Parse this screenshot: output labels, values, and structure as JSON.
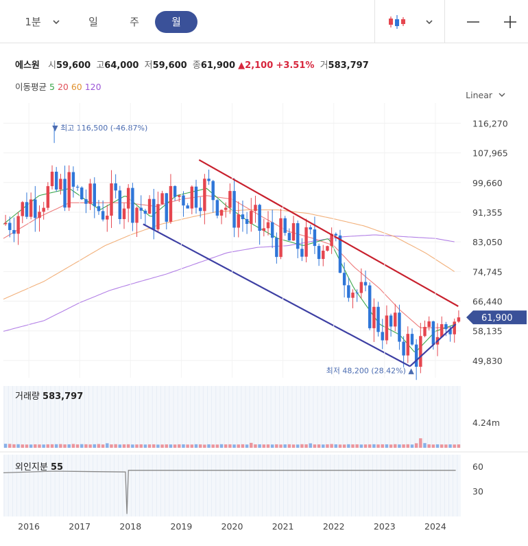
{
  "toolbar": {
    "interval_minute": "1분",
    "interval_day": "일",
    "interval_week": "주",
    "interval_month": "월",
    "active": "월"
  },
  "stock": {
    "name": "에스원",
    "open_label": "시",
    "open": "59,600",
    "high_label": "고",
    "high": "64,000",
    "low_label": "저",
    "low": "59,600",
    "close_label": "종",
    "close": "61,900",
    "change_arrow": "▲",
    "change": "2,100",
    "change_pct": "+3.51%",
    "volume_label": "거",
    "volume": "583,797"
  },
  "ma": {
    "label": "이동평균",
    "p5": "5",
    "p20": "20",
    "p60": "60",
    "p120": "120"
  },
  "scale_mode": "Linear",
  "colors": {
    "up": "#e5464f",
    "down": "#2f76d8",
    "ma5": "#3aa64a",
    "ma20": "#ee7c7c",
    "ma60": "#f2b07a",
    "ma120": "#b27fe6",
    "channel_top": "#c8202d",
    "channel_bottom": "#3d3fa3",
    "accent": "#3a5199"
  },
  "chart_data": {
    "type": "candlestick",
    "timeframe": "monthly",
    "ylim": [
      45000,
      120000
    ],
    "y_ticks": [
      "116,270",
      "107,965",
      "99,660",
      "91,355",
      "83,050",
      "74,745",
      "66,440",
      "58,135",
      "49,830"
    ],
    "y_tick_values": [
      116270,
      107965,
      99660,
      91355,
      83050,
      74745,
      66440,
      58135,
      49830
    ],
    "x_ticks": [
      "2016",
      "2017",
      "2018",
      "2019",
      "2020",
      "2021",
      "2022",
      "2023",
      "2024"
    ],
    "start_year": 2015.5,
    "months": 108,
    "last_price": "61,900",
    "last_price_value": 61900,
    "max_marker": {
      "text": "▼ 최고 116,500 (-46.87%)",
      "value": 116500,
      "year": 2016.5
    },
    "min_marker": {
      "text": "최저 48,200 (28.42%) ▲",
      "value": 48200,
      "year": 2023.5
    },
    "trend_lines": [
      {
        "name": "upper-channel",
        "from": [
          2019.35,
          106000
        ],
        "to": [
          2024.45,
          65000
        ]
      },
      {
        "name": "lower-channel",
        "from": [
          2018.25,
          88000
        ],
        "to": [
          2023.5,
          48200
        ]
      },
      {
        "name": "support-line",
        "from": [
          2023.5,
          48200
        ],
        "to": [
          2024.4,
          60000
        ]
      }
    ],
    "ma_anchors": {
      "ma5": [
        [
          2015.5,
          88000
        ],
        [
          2016.2,
          96000
        ],
        [
          2016.8,
          98000
        ],
        [
          2017.4,
          92000
        ],
        [
          2017.9,
          96000
        ],
        [
          2018.4,
          90000
        ],
        [
          2018.9,
          96000
        ],
        [
          2019.5,
          98000
        ],
        [
          2019.9,
          93000
        ],
        [
          2020.4,
          88000
        ],
        [
          2020.9,
          84000
        ],
        [
          2021.4,
          82000
        ],
        [
          2021.9,
          84000
        ],
        [
          2022.4,
          70000
        ],
        [
          2022.9,
          60000
        ],
        [
          2023.3,
          57000
        ],
        [
          2023.6,
          52000
        ],
        [
          2024.0,
          58000
        ],
        [
          2024.4,
          60000
        ]
      ],
      "ma20": [
        [
          2015.5,
          84000
        ],
        [
          2016.2,
          90000
        ],
        [
          2016.8,
          94000
        ],
        [
          2017.4,
          94000
        ],
        [
          2017.9,
          94000
        ],
        [
          2018.5,
          93000
        ],
        [
          2019.0,
          95000
        ],
        [
          2019.5,
          96000
        ],
        [
          2020.0,
          95000
        ],
        [
          2020.6,
          90000
        ],
        [
          2021.1,
          86000
        ],
        [
          2021.6,
          84000
        ],
        [
          2022.0,
          82000
        ],
        [
          2022.4,
          76000
        ],
        [
          2022.9,
          70000
        ],
        [
          2023.3,
          64000
        ],
        [
          2023.7,
          59000
        ],
        [
          2024.4,
          59000
        ]
      ],
      "ma60": [
        [
          2015.5,
          67000
        ],
        [
          2016.3,
          72000
        ],
        [
          2016.9,
          77000
        ],
        [
          2017.5,
          82000
        ],
        [
          2018.0,
          85000
        ],
        [
          2018.6,
          88000
        ],
        [
          2019.2,
          90000
        ],
        [
          2019.7,
          91500
        ],
        [
          2020.3,
          92000
        ],
        [
          2020.9,
          92000
        ],
        [
          2021.5,
          91000
        ],
        [
          2022.0,
          89500
        ],
        [
          2022.6,
          87500
        ],
        [
          2023.2,
          84500
        ],
        [
          2023.8,
          80000
        ],
        [
          2024.4,
          74500
        ]
      ],
      "ma120": [
        [
          2015.5,
          58000
        ],
        [
          2016.3,
          61000
        ],
        [
          2017.0,
          66000
        ],
        [
          2017.6,
          69500
        ],
        [
          2018.2,
          72000
        ],
        [
          2018.7,
          74000
        ],
        [
          2019.3,
          77000
        ],
        [
          2019.9,
          80000
        ],
        [
          2020.5,
          81500
        ],
        [
          2021.1,
          82000
        ],
        [
          2021.7,
          83500
        ],
        [
          2022.2,
          84500
        ],
        [
          2022.8,
          85000
        ],
        [
          2023.4,
          84500
        ],
        [
          2024.0,
          84000
        ],
        [
          2024.4,
          83000
        ]
      ]
    },
    "volume_label": "거래량",
    "volume_value": "583,797",
    "volume_tick": "4.24m",
    "volume_tick_value": 4240000,
    "volume_max": 5800000,
    "volume_values": [
      680,
      660,
      600,
      610,
      570,
      560,
      560,
      590,
      570,
      560,
      590,
      600,
      610,
      630,
      580,
      590,
      650,
      580,
      620,
      600,
      570,
      600,
      640,
      570,
      770,
      580,
      610,
      560,
      590,
      600,
      560,
      570,
      590,
      560,
      580,
      590,
      550,
      560,
      580,
      570,
      560,
      590,
      590,
      560,
      560,
      600,
      580,
      540,
      590,
      560,
      560,
      610,
      580,
      590,
      560,
      570,
      600,
      560,
      840,
      580,
      590,
      570,
      580,
      560,
      590,
      560,
      580,
      600,
      560,
      560,
      610,
      590,
      760,
      570,
      580,
      560,
      590,
      640,
      590,
      560,
      560,
      600,
      580,
      590,
      560,
      570,
      580,
      600,
      570,
      590,
      590,
      560,
      610,
      570,
      580,
      600,
      560,
      770,
      1620,
      800,
      590,
      560,
      590,
      570,
      560,
      580,
      560,
      580
    ],
    "foreign_label": "외인지분",
    "foreign_value": "55",
    "foreign_ticks": [
      "60",
      "30"
    ],
    "foreign_tick_values": [
      60,
      30
    ],
    "foreign_range": [
      0,
      75
    ],
    "foreign_anchors": [
      [
        2015.5,
        53
      ],
      [
        2016.5,
        55
      ],
      [
        2017.9,
        54
      ],
      [
        2017.93,
        3
      ],
      [
        2017.96,
        56
      ],
      [
        2024.4,
        56
      ]
    ]
  }
}
